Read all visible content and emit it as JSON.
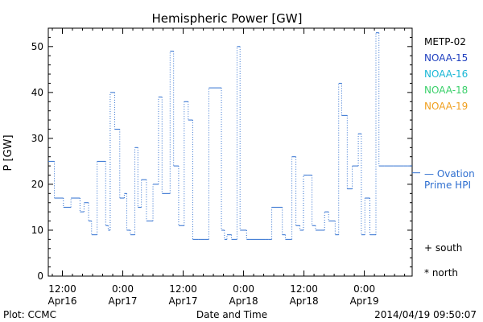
{
  "chart_data": {
    "type": "line",
    "title": "Hemispheric Power [GW]",
    "xlabel": "Date and Time",
    "ylabel": "P [GW]",
    "ylim": [
      0,
      54
    ],
    "grid": false,
    "y_ticks": [
      0,
      10,
      20,
      30,
      40,
      50
    ],
    "x_unit": "hours since 2014-04-16 00:00 UT",
    "xlim": [
      9.2,
      81.5
    ],
    "x_ticks": [
      {
        "x": 12,
        "time": "12:00",
        "date": "Apr16"
      },
      {
        "x": 24,
        "time": "0:00",
        "date": "Apr17"
      },
      {
        "x": 36,
        "time": "12:00",
        "date": "Apr17"
      },
      {
        "x": 48,
        "time": "0:00",
        "date": "Apr18"
      },
      {
        "x": 60,
        "time": "12:00",
        "date": "Apr18"
      },
      {
        "x": 72,
        "time": "0:00",
        "date": "Apr19"
      }
    ],
    "legend": {
      "placement": "right",
      "entries": [
        {
          "label": "METP-02",
          "color": "#000000"
        },
        {
          "label": "NOAA-15",
          "color": "#1f3fbf"
        },
        {
          "label": "NOAA-16",
          "color": "#19b7d6"
        },
        {
          "label": "NOAA-18",
          "color": "#3ad06a"
        },
        {
          "label": "NOAA-19",
          "color": "#f0a020"
        }
      ],
      "ovation_line1": "— Ovation",
      "ovation_line2": "Prime HPI",
      "ovation_color": "#2f6fd0",
      "south_label": "+ south",
      "north_label": "* north"
    },
    "series": [
      {
        "name": "Ovation Prime HPI",
        "color": "#2f6fd0",
        "style": "step",
        "x": [
          9.2,
          10.4,
          12.2,
          13.7,
          15.5,
          16.3,
          17.2,
          17.8,
          18.9,
          20.6,
          21.1,
          21.5,
          22.4,
          23.4,
          24.3,
          24.8,
          25.5,
          26.4,
          27.0,
          27.7,
          28.7,
          29.5,
          30.0,
          31.1,
          31.8,
          33.4,
          34.1,
          35.1,
          36.2,
          37.0,
          37.9,
          39.0,
          39.5,
          40.3,
          41.1,
          43.6,
          44.2,
          44.7,
          45.6,
          46.7,
          47.3,
          48.6,
          49.2,
          52.3,
          52.9,
          53.6,
          55.7,
          56.3,
          57.6,
          58.4,
          59.2,
          59.9,
          60.8,
          61.6,
          62.3,
          64.1,
          64.9,
          66.2,
          66.9,
          67.5,
          68.6,
          69.6,
          70.8,
          71.4,
          72.1,
          73.1,
          74.3,
          74.9,
          76.0,
          76.7,
          77.8,
          78.7,
          79.8,
          80.6,
          81.5
        ],
        "y": [
          25,
          17,
          15,
          17,
          14,
          16,
          12,
          9,
          25,
          11,
          10,
          40,
          32,
          17,
          18,
          10,
          9,
          28,
          15,
          21,
          12,
          12,
          20,
          39,
          18,
          49,
          24,
          11,
          38,
          34,
          8,
          8,
          8,
          8,
          41,
          10,
          8,
          9,
          8,
          50,
          10,
          8,
          8,
          8,
          8,
          15,
          9,
          8,
          26,
          11,
          10,
          22,
          22,
          11,
          10,
          14,
          12,
          9,
          42,
          35,
          19,
          24,
          31,
          9,
          17,
          9,
          53,
          24,
          24,
          24,
          24,
          24,
          24,
          24,
          24
        ]
      }
    ]
  },
  "footer": {
    "left": "Plot: CCMC",
    "center": "Date and Time",
    "right": "2014/04/19 09:50:07"
  }
}
